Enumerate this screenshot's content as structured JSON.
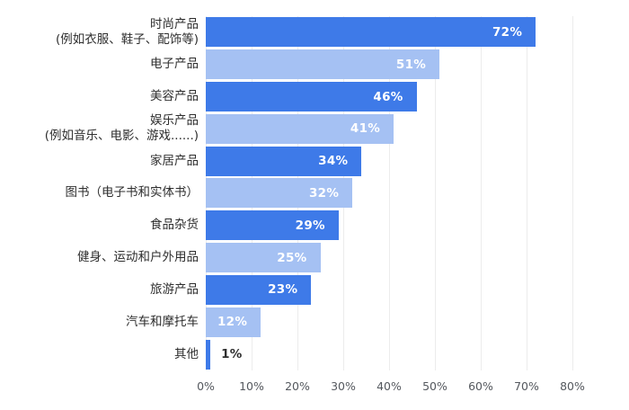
{
  "chart_data": {
    "type": "bar",
    "orientation": "horizontal",
    "title": "",
    "categories": [
      [
        "时尚产品",
        "(例如衣服、鞋子、配饰等)"
      ],
      [
        "电子产品"
      ],
      [
        "美容产品"
      ],
      [
        "娱乐产品",
        "(例如音乐、电影、游戏......)"
      ],
      [
        "家居产品"
      ],
      [
        "图书（电子书和实体书）"
      ],
      [
        "食品杂货"
      ],
      [
        "健身、运动和户外用品"
      ],
      [
        "旅游产品"
      ],
      [
        "汽车和摩托车"
      ],
      [
        "其他"
      ]
    ],
    "values": [
      72,
      51,
      46,
      41,
      34,
      32,
      29,
      25,
      23,
      12,
      1
    ],
    "value_labels": [
      "72%",
      "51%",
      "46%",
      "41%",
      "34%",
      "32%",
      "29%",
      "25%",
      "23%",
      "12%",
      "1%"
    ],
    "x_ticks": [
      "0%",
      "10%",
      "20%",
      "30%",
      "40%",
      "50%",
      "60%",
      "70%",
      "80%"
    ],
    "xlim": [
      0,
      80
    ],
    "grid": true,
    "legend": false,
    "colors": {
      "bar_dark": "#3e7ae8",
      "bar_light": "#a5c1f3",
      "grid": "#ececec",
      "axis_text": "#54585e",
      "category_text": "#2e2e2e",
      "value_text_inside": "#ffffff",
      "value_text_outside": "#2e2e2e"
    }
  }
}
